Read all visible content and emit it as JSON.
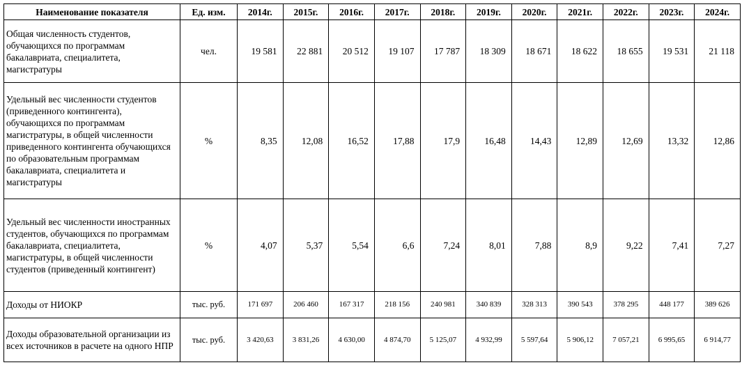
{
  "table": {
    "header": [
      "Наименование показателя",
      "Ед. изм.",
      "2014г.",
      "2015г.",
      "2016г.",
      "2017г.",
      "2018г.",
      "2019г.",
      "2020г.",
      "2021г.",
      "2022г.",
      "2023г.",
      "2024г."
    ],
    "rows": [
      {
        "name": "Общая численность студентов, обучающихся по программам бакалавриата, специалитета, магистратуры",
        "unit": "чел.",
        "values": [
          "19 581",
          "22 881",
          "20 512",
          "19 107",
          "17 787",
          "18 309",
          "18 671",
          "18 622",
          "18 655",
          "19 531",
          "21 118"
        ]
      },
      {
        "name": "Удельный вес численности студентов (приведенного контингента), обучающихся по программам магистратуры, в общей численности приведенного контингента обучающихся по образовательным программам бакалавриата, специалитета и магистратуры",
        "unit": "%",
        "values": [
          "8,35",
          "12,08",
          "16,52",
          "17,88",
          "17,9",
          "16,48",
          "14,43",
          "12,89",
          "12,69",
          "13,32",
          "12,86"
        ]
      },
      {
        "name": "Удельный вес численности иностранных студентов, обучающихся по программам бакалавриата, специалитета, магистратуры, в общей численности студентов (приведенный контингент)",
        "unit": "%",
        "values": [
          "4,07",
          "5,37",
          "5,54",
          "6,6",
          "7,24",
          "8,01",
          "7,88",
          "8,9",
          "9,22",
          "7,41",
          "7,27"
        ]
      },
      {
        "name": "Доходы от НИОКР",
        "unit": "тыс. руб.",
        "values": [
          "171 697",
          "206 460",
          "167 317",
          "218 156",
          "240 981",
          "340 839",
          "328 313",
          "390 543",
          "378 295",
          "448 177",
          "389 626"
        ]
      },
      {
        "name": "Доходы образовательной организации из всех источников в расчете на одного НПР",
        "unit": "тыс. руб.",
        "values": [
          "3 420,63",
          "3 831,26",
          "4 630,00",
          "4 874,70",
          "5 125,07",
          "4 932,99",
          "5 597,64",
          "5 906,12",
          "7 057,21",
          "6 995,65",
          "6 914,77"
        ]
      }
    ]
  }
}
